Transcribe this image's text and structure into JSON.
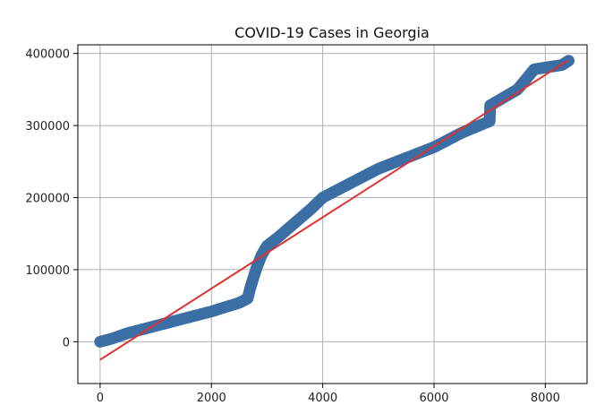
{
  "chart_data": {
    "type": "scatter",
    "title": "COVID-19 Cases in Georgia",
    "xlabel": "",
    "ylabel": "",
    "xlim": [
      -400,
      8750
    ],
    "ylim": [
      -58000,
      412000
    ],
    "xticks": [
      0,
      2000,
      4000,
      6000,
      8000
    ],
    "yticks": [
      0,
      100000,
      200000,
      300000,
      400000
    ],
    "xtick_labels": [
      "0",
      "2000",
      "4000",
      "6000",
      "8000"
    ],
    "ytick_labels": [
      "0",
      "100000",
      "200000",
      "300000",
      "400000"
    ],
    "grid": true,
    "series": [
      {
        "kind": "points",
        "color": "#3a6ea5",
        "anchors_x": [
          0,
          200,
          500,
          1000,
          1500,
          2000,
          2500,
          2650,
          2700,
          2800,
          2900,
          3000,
          3200,
          3500,
          3800,
          4000,
          4500,
          5000,
          5500,
          6000,
          6500,
          7000,
          7010,
          7500,
          7800,
          8300,
          8420
        ],
        "anchors_y": [
          0,
          4000,
          12000,
          22000,
          32000,
          42000,
          54000,
          60000,
          75000,
          100000,
          120000,
          133000,
          145000,
          165000,
          185000,
          200000,
          220000,
          240000,
          255000,
          270000,
          290000,
          306000,
          328000,
          350000,
          378000,
          384000,
          390000
        ]
      },
      {
        "kind": "trend-line",
        "color": "#e03030",
        "x": [
          0,
          8400
        ],
        "y": [
          -25000,
          390000
        ]
      }
    ]
  }
}
